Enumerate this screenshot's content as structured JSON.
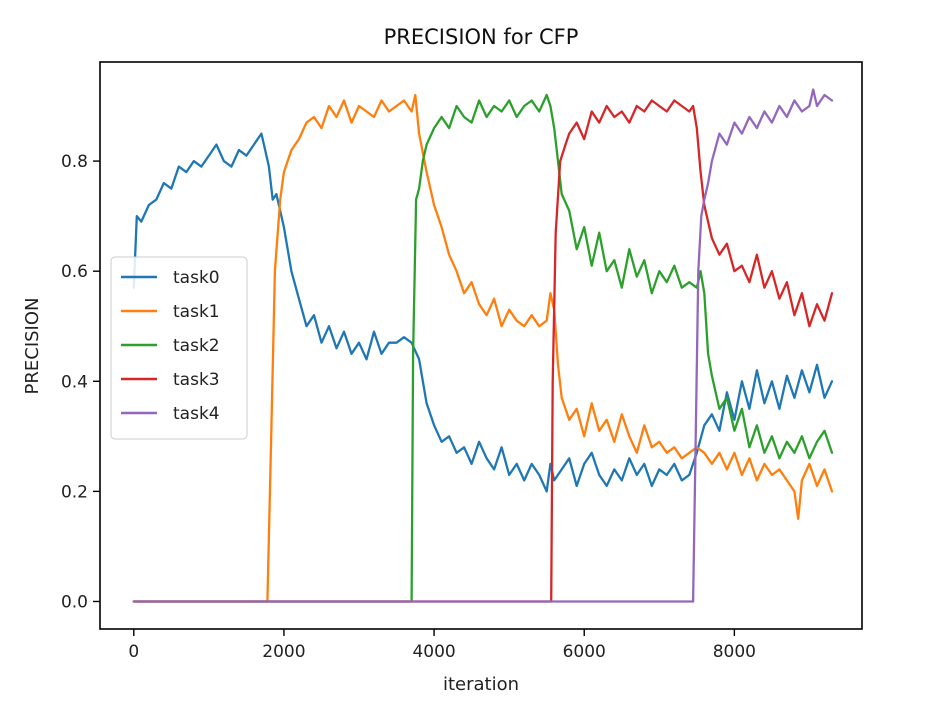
{
  "chart_data": {
    "type": "line",
    "title": "PRECISION for CFP",
    "xlabel": "iteration",
    "ylabel": "PRECISION",
    "xlim": [
      -450,
      9700
    ],
    "ylim": [
      -0.05,
      0.98
    ],
    "xticks": [
      0,
      2000,
      4000,
      6000,
      8000
    ],
    "yticks": [
      0.0,
      0.2,
      0.4,
      0.6,
      0.8
    ],
    "xtick_labels": [
      "0",
      "2000",
      "4000",
      "6000",
      "8000"
    ],
    "ytick_labels": [
      "0.0",
      "0.2",
      "0.4",
      "0.6",
      "0.8"
    ],
    "grid": false,
    "legend": "center-left",
    "series": [
      {
        "name": "task0",
        "color": "#1f77b4",
        "x": [
          0,
          40,
          100,
          200,
          300,
          400,
          500,
          600,
          700,
          800,
          900,
          1000,
          1100,
          1200,
          1300,
          1400,
          1500,
          1600,
          1700,
          1750,
          1800,
          1850,
          1900,
          2000,
          2100,
          2200,
          2300,
          2400,
          2500,
          2600,
          2700,
          2800,
          2900,
          3000,
          3100,
          3200,
          3300,
          3400,
          3500,
          3600,
          3700,
          3800,
          3900,
          4000,
          4100,
          4200,
          4300,
          4400,
          4500,
          4600,
          4700,
          4800,
          4900,
          5000,
          5100,
          5200,
          5300,
          5400,
          5500,
          5550,
          5600,
          5700,
          5800,
          5900,
          6000,
          6100,
          6200,
          6300,
          6400,
          6500,
          6600,
          6700,
          6800,
          6900,
          7000,
          7100,
          7200,
          7300,
          7400,
          7500,
          7600,
          7700,
          7800,
          7900,
          8000,
          8100,
          8200,
          8300,
          8400,
          8500,
          8600,
          8700,
          8800,
          8900,
          9000,
          9100,
          9200,
          9300
        ],
        "y": [
          0.57,
          0.7,
          0.69,
          0.72,
          0.73,
          0.76,
          0.75,
          0.79,
          0.78,
          0.8,
          0.79,
          0.81,
          0.83,
          0.8,
          0.79,
          0.82,
          0.81,
          0.83,
          0.85,
          0.82,
          0.79,
          0.73,
          0.74,
          0.68,
          0.6,
          0.55,
          0.5,
          0.52,
          0.47,
          0.5,
          0.46,
          0.49,
          0.45,
          0.47,
          0.44,
          0.49,
          0.45,
          0.47,
          0.47,
          0.48,
          0.47,
          0.44,
          0.36,
          0.32,
          0.29,
          0.3,
          0.27,
          0.28,
          0.25,
          0.29,
          0.26,
          0.24,
          0.28,
          0.23,
          0.25,
          0.22,
          0.25,
          0.23,
          0.2,
          0.25,
          0.22,
          0.24,
          0.26,
          0.21,
          0.25,
          0.27,
          0.23,
          0.21,
          0.24,
          0.22,
          0.26,
          0.23,
          0.25,
          0.21,
          0.24,
          0.23,
          0.25,
          0.22,
          0.23,
          0.27,
          0.32,
          0.34,
          0.31,
          0.38,
          0.33,
          0.4,
          0.35,
          0.42,
          0.36,
          0.4,
          0.35,
          0.41,
          0.37,
          0.42,
          0.38,
          0.43,
          0.37,
          0.4
        ]
      },
      {
        "name": "task1",
        "color": "#ff7f0e",
        "x": [
          0,
          1780,
          1830,
          1880,
          1950,
          2000,
          2100,
          2200,
          2300,
          2400,
          2500,
          2600,
          2700,
          2800,
          2900,
          3000,
          3100,
          3200,
          3300,
          3400,
          3500,
          3600,
          3700,
          3750,
          3800,
          3900,
          4000,
          4100,
          4200,
          4300,
          4400,
          4500,
          4600,
          4700,
          4800,
          4900,
          5000,
          5100,
          5200,
          5300,
          5400,
          5500,
          5550,
          5600,
          5650,
          5700,
          5800,
          5900,
          6000,
          6100,
          6200,
          6300,
          6400,
          6500,
          6600,
          6700,
          6800,
          6900,
          7000,
          7100,
          7200,
          7300,
          7400,
          7500,
          7600,
          7700,
          7800,
          7900,
          8000,
          8100,
          8200,
          8300,
          8400,
          8500,
          8600,
          8700,
          8800,
          8850,
          8900,
          9000,
          9100,
          9200,
          9300
        ],
        "y": [
          0.0,
          0.0,
          0.3,
          0.6,
          0.73,
          0.78,
          0.82,
          0.84,
          0.87,
          0.88,
          0.86,
          0.9,
          0.88,
          0.91,
          0.87,
          0.9,
          0.89,
          0.88,
          0.91,
          0.89,
          0.9,
          0.91,
          0.89,
          0.92,
          0.85,
          0.78,
          0.72,
          0.68,
          0.63,
          0.6,
          0.56,
          0.58,
          0.54,
          0.52,
          0.55,
          0.5,
          0.53,
          0.51,
          0.5,
          0.52,
          0.5,
          0.51,
          0.56,
          0.53,
          0.43,
          0.37,
          0.33,
          0.35,
          0.3,
          0.36,
          0.31,
          0.33,
          0.29,
          0.34,
          0.3,
          0.27,
          0.32,
          0.28,
          0.29,
          0.27,
          0.28,
          0.26,
          0.27,
          0.28,
          0.27,
          0.25,
          0.27,
          0.24,
          0.27,
          0.23,
          0.26,
          0.22,
          0.25,
          0.23,
          0.24,
          0.22,
          0.2,
          0.15,
          0.22,
          0.25,
          0.21,
          0.24,
          0.2
        ]
      },
      {
        "name": "task2",
        "color": "#2ca02c",
        "x": [
          0,
          3700,
          3720,
          3760,
          3800,
          3850,
          3900,
          4000,
          4100,
          4200,
          4300,
          4400,
          4500,
          4600,
          4700,
          4800,
          4900,
          5000,
          5100,
          5200,
          5300,
          5400,
          5500,
          5550,
          5600,
          5650,
          5700,
          5800,
          5900,
          6000,
          6100,
          6200,
          6300,
          6400,
          6500,
          6600,
          6700,
          6800,
          6900,
          7000,
          7100,
          7200,
          7300,
          7400,
          7500,
          7550,
          7600,
          7650,
          7700,
          7800,
          7900,
          8000,
          8100,
          8200,
          8300,
          8400,
          8500,
          8600,
          8700,
          8800,
          8900,
          9000,
          9100,
          9200,
          9300
        ],
        "y": [
          0.0,
          0.0,
          0.45,
          0.73,
          0.75,
          0.8,
          0.83,
          0.86,
          0.88,
          0.86,
          0.9,
          0.88,
          0.87,
          0.91,
          0.88,
          0.9,
          0.89,
          0.91,
          0.88,
          0.9,
          0.91,
          0.89,
          0.92,
          0.9,
          0.86,
          0.8,
          0.74,
          0.71,
          0.64,
          0.68,
          0.61,
          0.67,
          0.6,
          0.62,
          0.57,
          0.64,
          0.59,
          0.62,
          0.56,
          0.6,
          0.58,
          0.61,
          0.57,
          0.58,
          0.57,
          0.6,
          0.56,
          0.45,
          0.41,
          0.35,
          0.37,
          0.31,
          0.35,
          0.28,
          0.32,
          0.27,
          0.3,
          0.26,
          0.29,
          0.27,
          0.3,
          0.26,
          0.29,
          0.31,
          0.27
        ]
      },
      {
        "name": "task3",
        "color": "#d62728",
        "x": [
          0,
          5560,
          5580,
          5620,
          5680,
          5750,
          5800,
          5900,
          6000,
          6100,
          6200,
          6300,
          6400,
          6500,
          6600,
          6700,
          6800,
          6900,
          7000,
          7100,
          7200,
          7300,
          7400,
          7450,
          7500,
          7550,
          7600,
          7700,
          7800,
          7900,
          8000,
          8100,
          8200,
          8300,
          8400,
          8500,
          8600,
          8700,
          8800,
          8900,
          9000,
          9100,
          9200,
          9300
        ],
        "y": [
          0.0,
          0.0,
          0.4,
          0.67,
          0.8,
          0.83,
          0.85,
          0.87,
          0.84,
          0.89,
          0.87,
          0.9,
          0.88,
          0.89,
          0.87,
          0.9,
          0.89,
          0.91,
          0.9,
          0.89,
          0.91,
          0.9,
          0.89,
          0.9,
          0.86,
          0.78,
          0.72,
          0.66,
          0.63,
          0.65,
          0.6,
          0.61,
          0.58,
          0.63,
          0.57,
          0.6,
          0.55,
          0.58,
          0.52,
          0.56,
          0.5,
          0.54,
          0.51,
          0.56
        ]
      },
      {
        "name": "task4",
        "color": "#9467bd",
        "x": [
          0,
          7450,
          7480,
          7520,
          7560,
          7600,
          7650,
          7700,
          7800,
          7900,
          8000,
          8100,
          8200,
          8300,
          8400,
          8500,
          8600,
          8700,
          8800,
          8900,
          9000,
          9050,
          9100,
          9200,
          9300
        ],
        "y": [
          0.0,
          0.0,
          0.25,
          0.6,
          0.7,
          0.73,
          0.76,
          0.8,
          0.85,
          0.83,
          0.87,
          0.85,
          0.88,
          0.86,
          0.89,
          0.87,
          0.9,
          0.88,
          0.91,
          0.89,
          0.9,
          0.93,
          0.9,
          0.92,
          0.91
        ]
      }
    ]
  }
}
